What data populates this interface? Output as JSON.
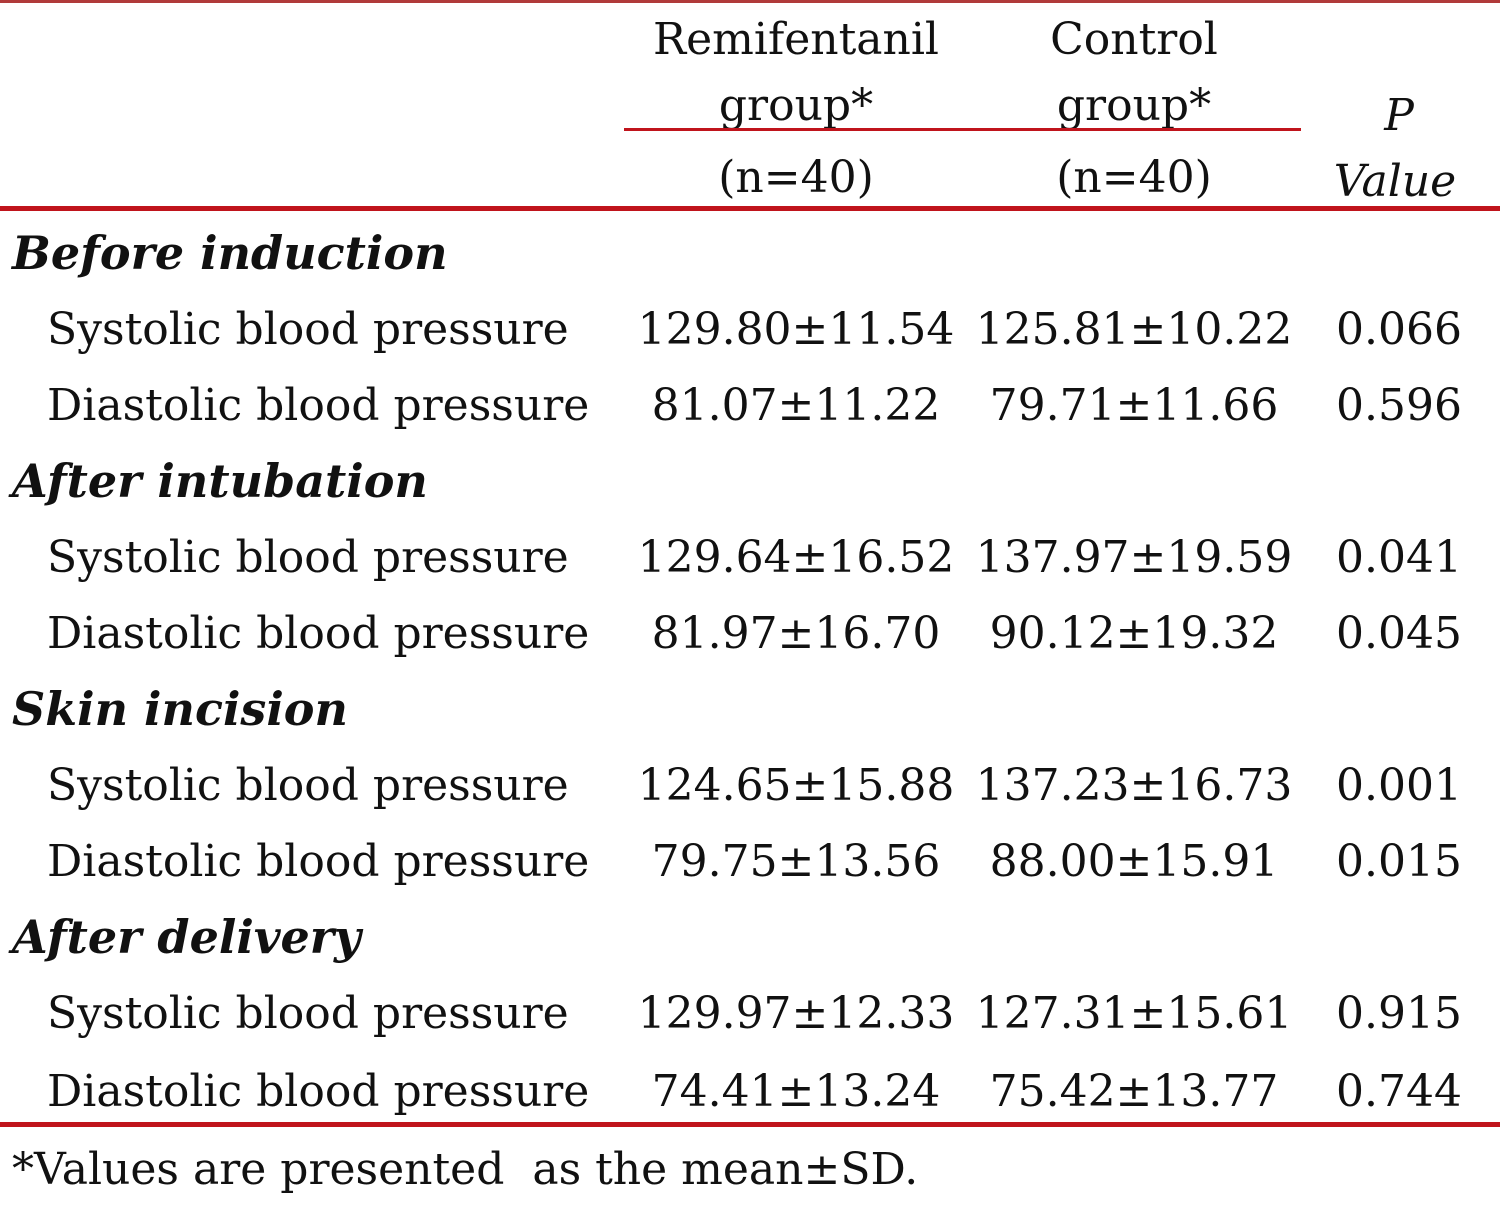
{
  "colors": {
    "rule": "#c0141c",
    "text": "#111111"
  },
  "header": {
    "remifentanil": {
      "line1": "Remifentanil",
      "line2": "group*",
      "line3": "(n=40)"
    },
    "control": {
      "line1": "Control",
      "line2": "group*",
      "line3": "(n=40)"
    },
    "p_value": {
      "line1": "P",
      "line2": "Value"
    }
  },
  "sections": [
    {
      "title": "Before induction",
      "rows": [
        {
          "label": "Systolic blood pressure",
          "remifentanil": "129.80±11.54",
          "control": "125.81±10.22",
          "p": "0.066"
        },
        {
          "label": "Diastolic blood pressure",
          "remifentanil": "81.07±11.22",
          "control": "79.71±11.66",
          "p": "0.596"
        }
      ]
    },
    {
      "title": "After intubation",
      "rows": [
        {
          "label": "Systolic blood pressure",
          "remifentanil": "129.64±16.52",
          "control": "137.97±19.59",
          "p": "0.041"
        },
        {
          "label": "Diastolic blood pressure",
          "remifentanil": "81.97±16.70",
          "control": "90.12±19.32",
          "p": "0.045"
        }
      ]
    },
    {
      "title": "Skin incision",
      "rows": [
        {
          "label": "Systolic blood pressure",
          "remifentanil": "124.65±15.88",
          "control": "137.23±16.73",
          "p": "0.001"
        },
        {
          "label": "Diastolic blood pressure",
          "remifentanil": "79.75±13.56",
          "control": "88.00±15.91",
          "p": "0.015"
        }
      ]
    },
    {
      "title": "After delivery",
      "rows": [
        {
          "label": "Systolic blood pressure",
          "remifentanil": "129.97±12.33",
          "control": "127.31±15.61",
          "p": "0.915"
        },
        {
          "label": "Diastolic blood pressure",
          "remifentanil": "74.41±13.24",
          "control": "75.42±13.77",
          "p": "0.744"
        }
      ]
    }
  ],
  "footnote": "*Values are presented  as the mean±SD."
}
